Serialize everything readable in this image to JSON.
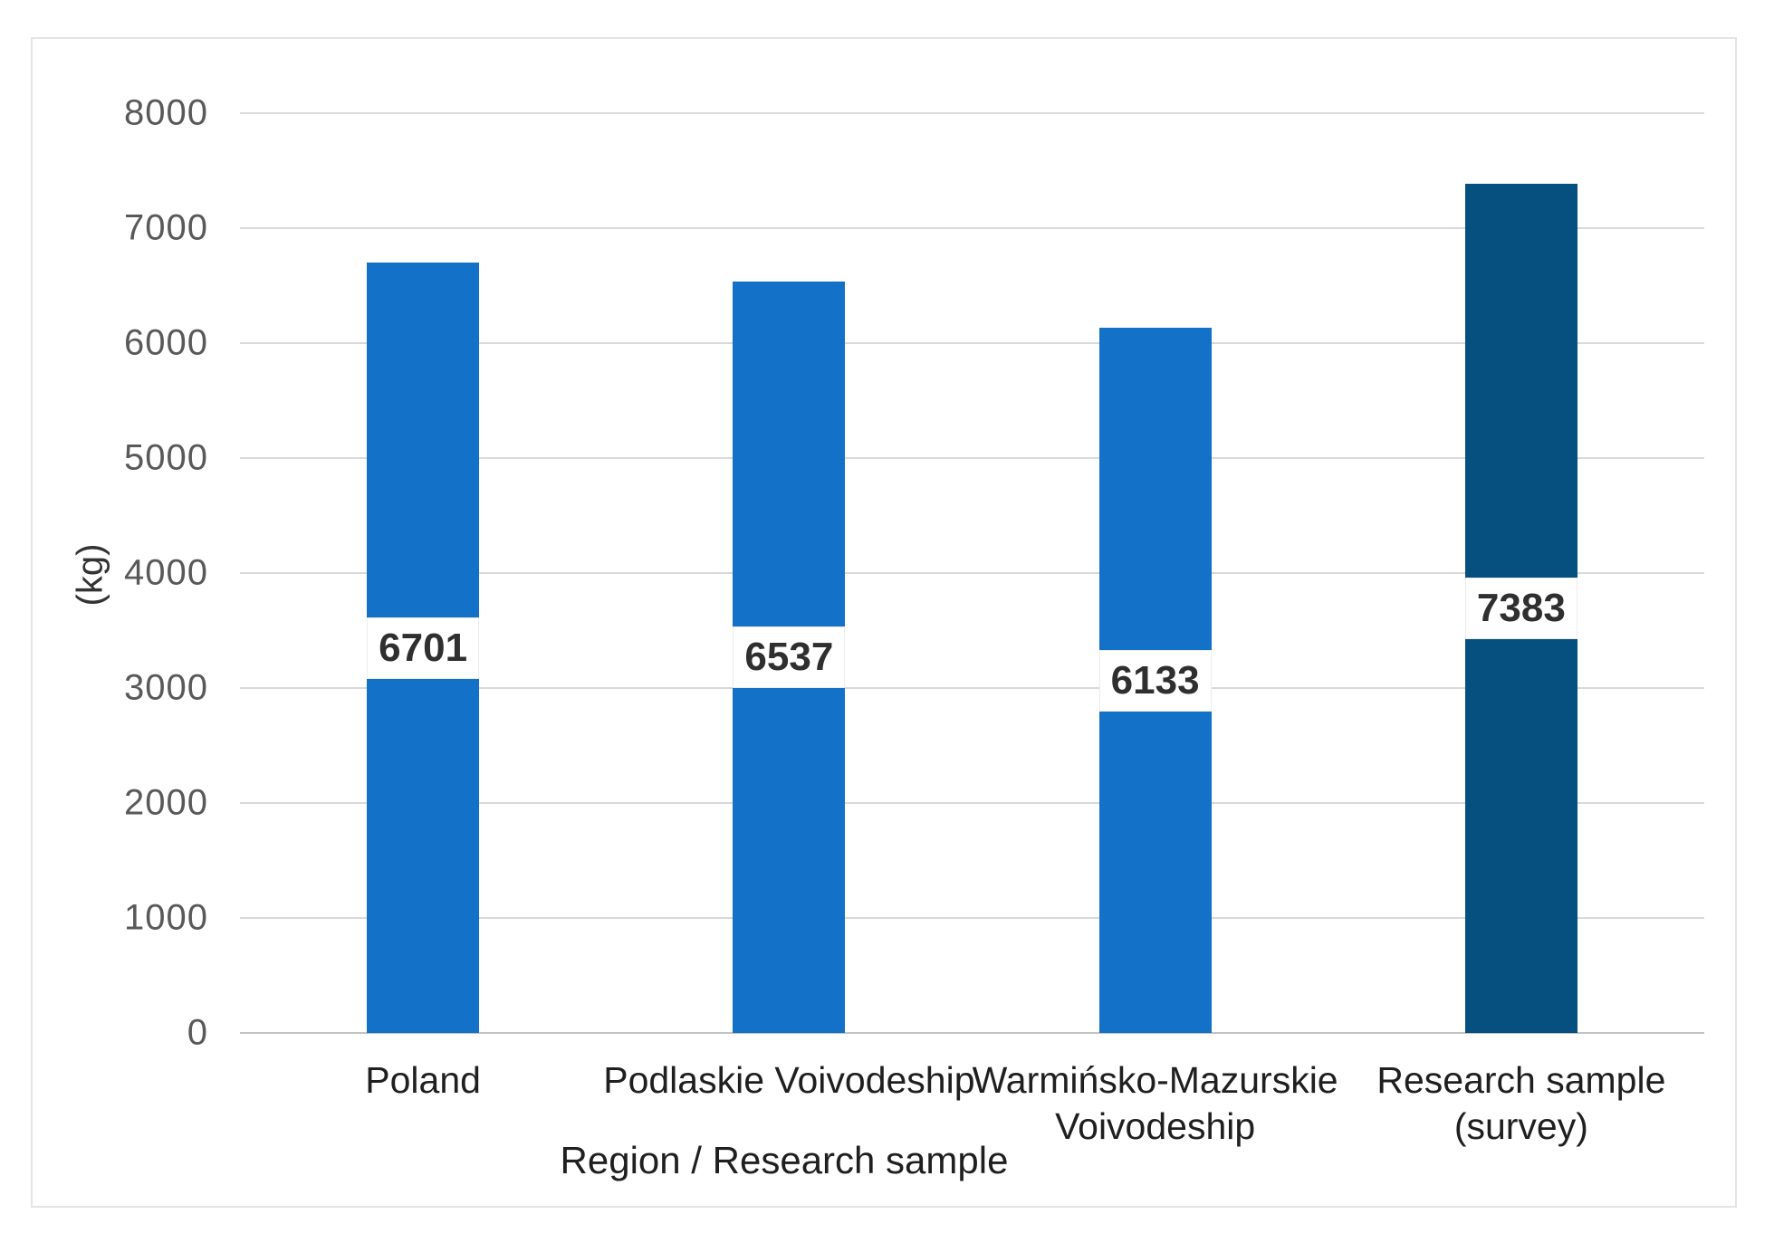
{
  "figure": {
    "y_axis_title": "(kg)",
    "x_axis_title": "Region / Research sample"
  },
  "chart_data": {
    "type": "bar",
    "title": "",
    "xlabel": "Region / Research sample",
    "ylabel": "(kg)",
    "categories": [
      "Poland",
      "Podlaskie Voivodeship",
      "Warmińsko-Mazurskie Voivodeship",
      "Research sample (survey)"
    ],
    "category_lines": [
      [
        "Poland"
      ],
      [
        "Podlaskie Voivodeship"
      ],
      [
        "Warmińsko-Mazurskie",
        "Voivodeship"
      ],
      [
        "Research sample",
        "(survey)"
      ]
    ],
    "values": [
      6701,
      6537,
      6133,
      7383
    ],
    "data_labels": [
      "6701",
      "6537",
      "6133",
      "7383"
    ],
    "data_label_position": "center",
    "bar_colors": [
      "#1471C8",
      "#1471C8",
      "#1471C8",
      "#05507E"
    ],
    "ylim": [
      0,
      8000
    ],
    "yticks": [
      8000,
      7000,
      6000,
      5000,
      4000,
      3000,
      2000,
      1000,
      0
    ],
    "grid": true,
    "legend": "none",
    "gridline_color": "#d9d9d9",
    "axis_line_color": "#c3c3c3"
  }
}
